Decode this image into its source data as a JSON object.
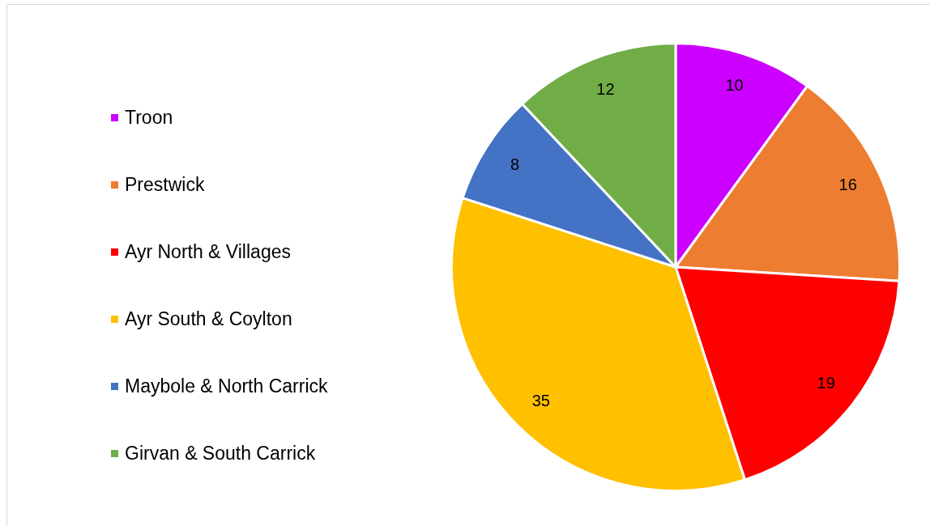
{
  "chart_data": {
    "type": "pie",
    "categories": [
      "Troon",
      "Prestwick",
      "Ayr North & Villages",
      "Ayr South & Coylton",
      "Maybole & North Carrick",
      "Girvan & South Carrick"
    ],
    "values": [
      10,
      16,
      19,
      35,
      8,
      12
    ],
    "colors": [
      "#cc00ff",
      "#ed7d31",
      "#ff0000",
      "#ffc000",
      "#4472c4",
      "#70ad47"
    ],
    "data_labels": true,
    "legend": "left"
  }
}
